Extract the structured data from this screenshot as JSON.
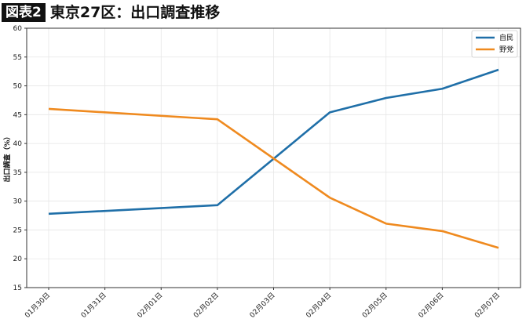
{
  "header": {
    "badge": "図表2",
    "title": "東京27区：出口調査推移"
  },
  "chart_data": {
    "type": "line",
    "title": "東京27区：出口調査推移",
    "xlabel": "",
    "ylabel": "出口調査（%）",
    "ylim": [
      15,
      60
    ],
    "yticks": [
      15,
      20,
      25,
      30,
      35,
      40,
      45,
      50,
      55,
      60
    ],
    "categories": [
      "01月30日",
      "01月31日",
      "02月01日",
      "02月02日",
      "02月03日",
      "02月04日",
      "02月05日",
      "02月06日",
      "02月07日"
    ],
    "grid": true,
    "legend_position": "upper right",
    "series": [
      {
        "name": "自民",
        "color": "#1f6fa8",
        "points": [
          [
            "01月30日",
            27.8
          ],
          [
            "02月02日",
            29.3
          ],
          [
            "02月04日",
            45.4
          ],
          [
            "02月05日",
            47.9
          ],
          [
            "02月06日",
            49.5
          ],
          [
            "02月07日",
            52.8
          ]
        ]
      },
      {
        "name": "野党",
        "color": "#ef8a1f",
        "points": [
          [
            "01月30日",
            46.0
          ],
          [
            "02月02日",
            44.2
          ],
          [
            "02月04日",
            30.6
          ],
          [
            "02月05日",
            26.1
          ],
          [
            "02月06日",
            24.8
          ],
          [
            "02月07日",
            21.9
          ]
        ]
      }
    ]
  }
}
